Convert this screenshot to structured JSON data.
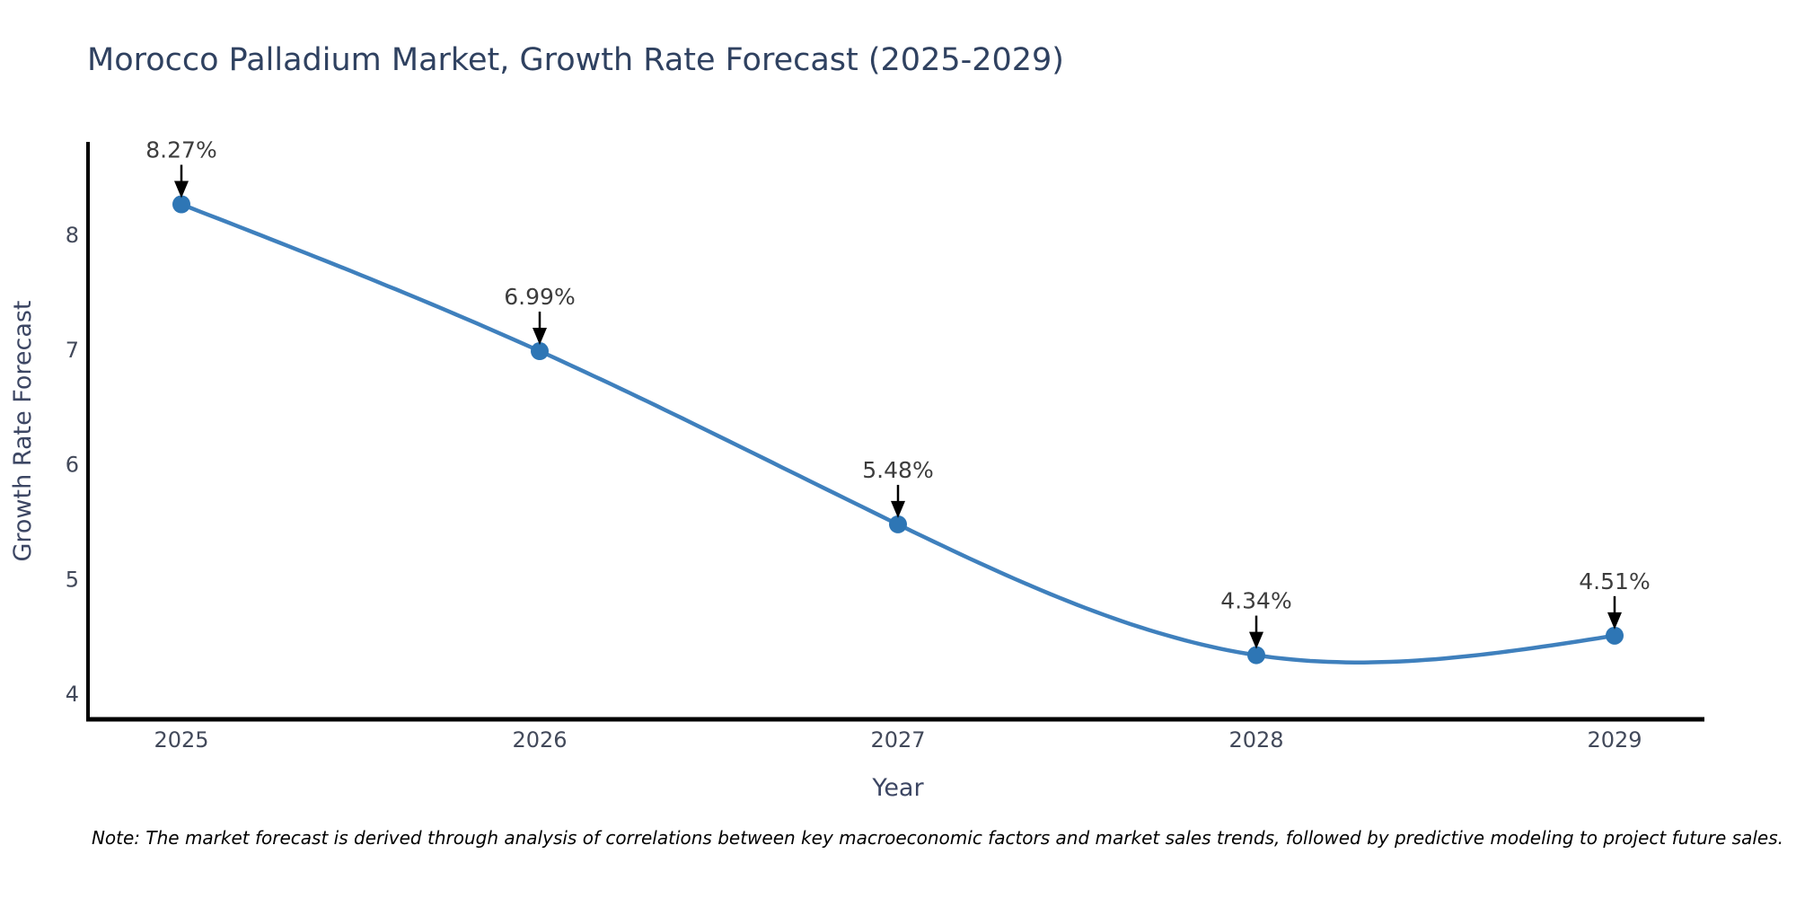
{
  "title": "Morocco Palladium Market, Growth Rate Forecast (2025-2029)",
  "note": "Note: The market forecast is derived through analysis of correlations between key macroeconomic factors and market sales trends, followed by predictive modeling to project future sales.",
  "chart_data": {
    "type": "line",
    "title": "Morocco Palladium Market, Growth Rate Forecast (2025-2029)",
    "xlabel": "Year",
    "ylabel": "Growth Rate Forecast",
    "categories": [
      "2025",
      "2026",
      "2027",
      "2028",
      "2029"
    ],
    "values": [
      8.27,
      6.99,
      5.48,
      4.34,
      4.51
    ],
    "point_labels": [
      "8.27%",
      "6.99%",
      "5.48%",
      "4.34%",
      "4.51%"
    ],
    "y_ticks": [
      4,
      5,
      6,
      7,
      8
    ],
    "ylim": [
      3.75,
      8.85
    ],
    "smooth": true,
    "grid": false,
    "legend": "none",
    "annotation_arrows": true,
    "colors": {
      "line": "#3f80bd",
      "marker": "#2e76b5",
      "arrow": "#000000",
      "title": "#2f4160",
      "axis_title": "#3c4663",
      "tick_label": "#42495a",
      "point_label": "#3d3d3d",
      "spine": "#000000",
      "note": "#000000",
      "background": "#ffffff"
    }
  }
}
